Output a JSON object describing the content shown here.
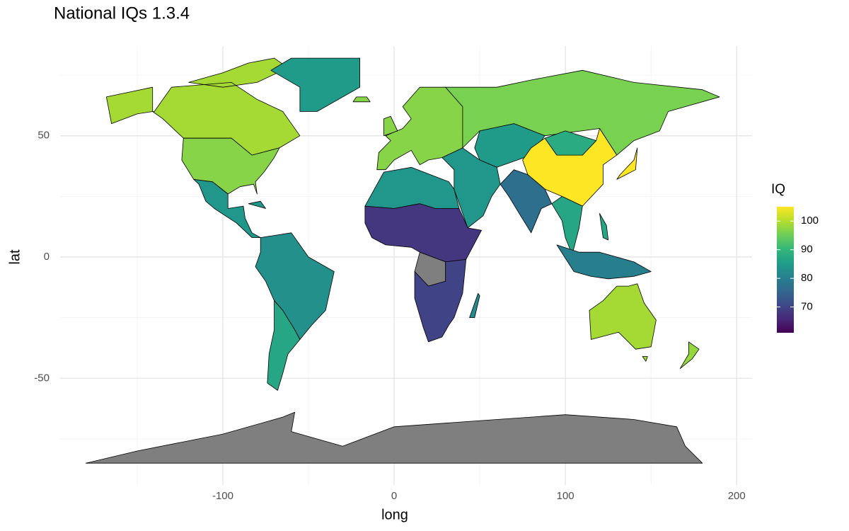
{
  "chart_data": {
    "type": "map",
    "title": "National IQs 1.3.4",
    "x_label": "long",
    "y_label": "lat",
    "xlim": [
      -195,
      209
    ],
    "ylim": [
      -94,
      87
    ],
    "xticks": [
      -100,
      0,
      100,
      200
    ],
    "yticks": [
      -50,
      0,
      50
    ],
    "grid": true,
    "legend_title": "IQ",
    "legend_position": "right",
    "color_lim": [
      61,
      105
    ],
    "color_ticks": [
      70,
      80,
      90,
      100
    ],
    "colormap": "viridis",
    "missing_color": "#7f7f7f",
    "values": [
      99,
      97,
      84,
      85,
      83,
      87,
      97,
      96,
      85,
      105,
      88,
      84,
      77,
      87,
      80,
      105,
      84,
      68,
      null,
      70,
      82,
      99,
      98,
      null
    ]
  }
}
